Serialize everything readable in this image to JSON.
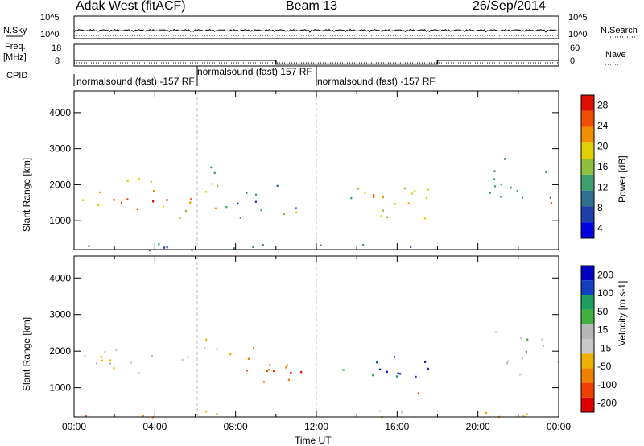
{
  "header": {
    "radar": "Adak West (fitACF)",
    "beam": "Beam 13",
    "date": "26/Sep/2014"
  },
  "status_panels": {
    "nsky_label": "N.Sky",
    "nsky_ticks": [
      "10^5",
      "10^0"
    ],
    "nsearch_ticks": [
      "10^5",
      "10^0"
    ],
    "nsearch_label": "N.Search",
    "freq_label": "Freq.",
    "freq_unit": "[MHz]",
    "freq_ticks": [
      "18",
      "8"
    ],
    "nave_ticks": [
      "60",
      "0"
    ],
    "nave_label": "Nave",
    "cpid_label": "CPID",
    "cpid_segments": [
      {
        "start_hour": 0,
        "end_hour": 6.1,
        "text": "normalsound (fast) -157 RF"
      },
      {
        "start_hour": 6.1,
        "end_hour": 12,
        "text": "normalsound (fast) 157 RF"
      },
      {
        "start_hour": 12,
        "end_hour": 24,
        "text": "normalsound (fast) -157 RF"
      }
    ],
    "freq_series": {
      "x_hours": [
        0,
        10,
        10,
        18,
        18,
        24
      ],
      "mhz": [
        11,
        11,
        9,
        9,
        11,
        11
      ]
    }
  },
  "chart_data": [
    {
      "type": "heatmap",
      "quantity": "Power",
      "ylabel": "Slant Range [km]",
      "xlabel": "Time UT",
      "xlim_hours": [
        0,
        24
      ],
      "ylim_km": [
        200,
        4600
      ],
      "y_ticks": [
        "4000",
        "3000",
        "2000",
        "1000"
      ],
      "x_ticks": [
        "00:00",
        "04:00",
        "08:00",
        "12:00",
        "16:00",
        "20:00",
        "00:00"
      ],
      "colorbar_label": "Power [dB]",
      "colorbar_ticks": [
        "28",
        "24",
        "20",
        "16",
        "12",
        "8",
        "4"
      ],
      "colorbar_range": [
        0,
        30
      ],
      "colorbar_colors": [
        "#0000e0",
        "#1f3fa8",
        "#2f6f8f",
        "#3f9f6f",
        "#8fbf3f",
        "#e0d000",
        "#f09000",
        "#f05000",
        "#e01000"
      ],
      "regions": [
        {
          "t0": 0,
          "t1": 7.0,
          "r0": 1300,
          "r1": 2200,
          "level": 0.7
        },
        {
          "t0": 0,
          "t1": 6.0,
          "r0": 1450,
          "r1": 1700,
          "level": 0.95
        },
        {
          "t0": 6.2,
          "t1": 7.5,
          "r0": 1700,
          "r1": 2700,
          "level": 0.45
        },
        {
          "t0": 5.0,
          "t1": 6.5,
          "r0": 800,
          "r1": 1400,
          "level": 0.35
        },
        {
          "t0": 7.5,
          "t1": 11.0,
          "r0": 1100,
          "r1": 2200,
          "level": 0.3
        },
        {
          "t0": 9.5,
          "t1": 11.0,
          "r0": 900,
          "r1": 1400,
          "level": 0.55
        },
        {
          "t0": 13.0,
          "t1": 17.8,
          "r0": 1000,
          "r1": 2000,
          "level": 0.55
        },
        {
          "t0": 14.5,
          "t1": 17.0,
          "r0": 1200,
          "r1": 1800,
          "level": 0.85
        },
        {
          "t0": 16.5,
          "t1": 18.0,
          "r0": 850,
          "r1": 1200,
          "level": 0.7
        },
        {
          "t0": 20.5,
          "t1": 24,
          "r0": 1400,
          "r1": 2800,
          "level": 0.35
        },
        {
          "t0": 23.0,
          "t1": 24,
          "r0": 1400,
          "r1": 1700,
          "level": 0.9
        },
        {
          "t0": 0,
          "t1": 24,
          "r0": 200,
          "r1": 400,
          "level": 0.25
        }
      ]
    },
    {
      "type": "heatmap",
      "quantity": "Velocity",
      "ylabel": "Slant Range [km]",
      "xlabel": "Time UT",
      "xlim_hours": [
        0,
        24
      ],
      "ylim_km": [
        200,
        4600
      ],
      "y_ticks": [
        "4000",
        "3000",
        "2000",
        "1000"
      ],
      "x_ticks": [
        "00:00",
        "04:00",
        "08:00",
        "12:00",
        "16:00",
        "20:00",
        "00:00"
      ],
      "colorbar_label": "Velocity [m s-1]",
      "colorbar_ticks": [
        "200",
        "100",
        "50",
        "15",
        "-15",
        "-50",
        "-100",
        "-200"
      ],
      "colorbar_range": [
        -250,
        250
      ],
      "colorbar_colors": [
        "#e00000",
        "#f04000",
        "#f08000",
        "#f0b000",
        "#c8c8c8",
        "#b8b8b8",
        "#40b040",
        "#20a060",
        "#1040c0",
        "#0000c0"
      ],
      "regions": [
        {
          "t0": 0,
          "t1": 7.0,
          "r0": 1300,
          "r1": 2100,
          "level": 0.48
        },
        {
          "t0": 6.0,
          "t1": 7.5,
          "r0": 2000,
          "r1": 2700,
          "level": 0.3
        },
        {
          "t0": 7.5,
          "t1": 11.5,
          "r0": 1100,
          "r1": 2200,
          "level": 0.2
        },
        {
          "t0": 9.0,
          "t1": 11.5,
          "r0": 1300,
          "r1": 1800,
          "level": 0.1
        },
        {
          "t0": 13.0,
          "t1": 18.0,
          "r0": 1300,
          "r1": 2000,
          "level": 0.95
        },
        {
          "t0": 13.0,
          "t1": 16.5,
          "r0": 1300,
          "r1": 1600,
          "level": 0.7
        },
        {
          "t0": 17.0,
          "t1": 18.2,
          "r0": 850,
          "r1": 1100,
          "level": 0.25
        },
        {
          "t0": 20.5,
          "t1": 24,
          "r0": 1300,
          "r1": 2600,
          "level": 0.5
        },
        {
          "t0": 0,
          "t1": 24,
          "r0": 200,
          "r1": 400,
          "level": 0.3
        }
      ]
    }
  ]
}
